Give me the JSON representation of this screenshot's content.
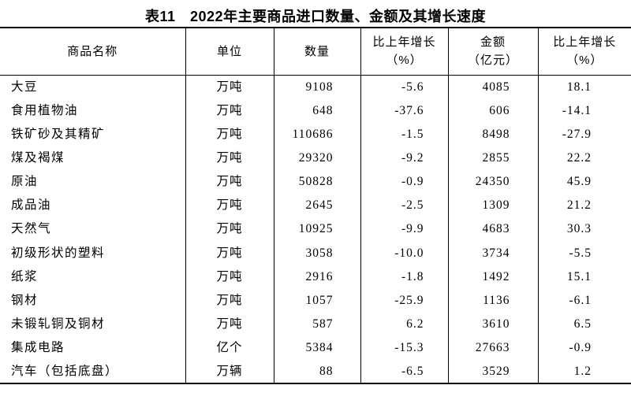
{
  "page": {
    "background": "#ffffff",
    "text_color": "#000000",
    "border_color": "#000000"
  },
  "title": "表11　2022年主要商品进口数量、金额及其增长速度",
  "table": {
    "headers": [
      "商品名称",
      "单位",
      "数量",
      "比上年增长\n（%）",
      "金额\n（亿元）",
      "比上年增长\n（%）"
    ],
    "rows": [
      {
        "name": "大豆",
        "unit": "万吨",
        "quantity": "9108",
        "quantity_growth": "-5.6",
        "amount": "4085",
        "amount_growth": "18.1"
      },
      {
        "name": "食用植物油",
        "unit": "万吨",
        "quantity": "648",
        "quantity_growth": "-37.6",
        "amount": "606",
        "amount_growth": "-14.1"
      },
      {
        "name": "铁矿砂及其精矿",
        "unit": "万吨",
        "quantity": "110686",
        "quantity_growth": "-1.5",
        "amount": "8498",
        "amount_growth": "-27.9"
      },
      {
        "name": "煤及褐煤",
        "unit": "万吨",
        "quantity": "29320",
        "quantity_growth": "-9.2",
        "amount": "2855",
        "amount_growth": "22.2"
      },
      {
        "name": "原油",
        "unit": "万吨",
        "quantity": "50828",
        "quantity_growth": "-0.9",
        "amount": "24350",
        "amount_growth": "45.9"
      },
      {
        "name": "成品油",
        "unit": "万吨",
        "quantity": "2645",
        "quantity_growth": "-2.5",
        "amount": "1309",
        "amount_growth": "21.2"
      },
      {
        "name": "天然气",
        "unit": "万吨",
        "quantity": "10925",
        "quantity_growth": "-9.9",
        "amount": "4683",
        "amount_growth": "30.3"
      },
      {
        "name": "初级形状的塑料",
        "unit": "万吨",
        "quantity": "3058",
        "quantity_growth": "-10.0",
        "amount": "3734",
        "amount_growth": "-5.5"
      },
      {
        "name": "纸浆",
        "unit": "万吨",
        "quantity": "2916",
        "quantity_growth": "-1.8",
        "amount": "1492",
        "amount_growth": "15.1"
      },
      {
        "name": "钢材",
        "unit": "万吨",
        "quantity": "1057",
        "quantity_growth": "-25.9",
        "amount": "1136",
        "amount_growth": "-6.1"
      },
      {
        "name": "未锻轧铜及铜材",
        "unit": "万吨",
        "quantity": "587",
        "quantity_growth": "6.2",
        "amount": "3610",
        "amount_growth": "6.5"
      },
      {
        "name": "集成电路",
        "unit": "亿个",
        "quantity": "5384",
        "quantity_growth": "-15.3",
        "amount": "27663",
        "amount_growth": "-0.9"
      },
      {
        "name": "汽车（包括底盘）",
        "unit": "万辆",
        "quantity": "88",
        "quantity_growth": "-6.5",
        "amount": "3529",
        "amount_growth": "1.2"
      }
    ]
  }
}
